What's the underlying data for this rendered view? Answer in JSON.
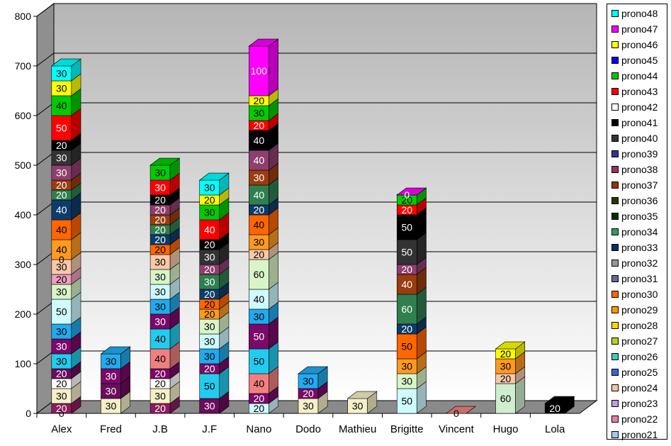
{
  "chart_data": {
    "type": "bar",
    "stacked": true,
    "three_d": true,
    "title": "",
    "xlabel": "",
    "ylabel": "",
    "ylim": [
      0,
      800
    ],
    "yticks": [
      0,
      100,
      200,
      300,
      400,
      500,
      600,
      700,
      800
    ],
    "grid": true,
    "legend_position": "right",
    "categories": [
      "Alex",
      "Fred",
      "J.B",
      "J.F",
      "Nano",
      "Dodo",
      "Mathieu",
      "Brigitte",
      "Vincent",
      "Hugo",
      "Lola"
    ],
    "series": [
      {
        "name": "prono21",
        "color": "#9ecaf0",
        "values": [
          0,
          0,
          0,
          0,
          20,
          0,
          0,
          50,
          0,
          0,
          0
        ]
      },
      {
        "name": "prono22",
        "color": "#e67fa0",
        "values": [
          20,
          0,
          20,
          0,
          0,
          0,
          0,
          0,
          0,
          0,
          0
        ]
      },
      {
        "name": "prono23",
        "color": "#b6a0e6",
        "values": [
          0,
          0,
          0,
          0,
          0,
          0,
          0,
          0,
          0,
          0,
          0
        ]
      },
      {
        "name": "prono24",
        "color": "#f5c6a5",
        "values": [
          0,
          0,
          0,
          0,
          0,
          0,
          0,
          0,
          0,
          20,
          0
        ]
      },
      {
        "name": "prono25",
        "color": "#3a67d6",
        "values": [
          0,
          0,
          0,
          0,
          0,
          0,
          0,
          0,
          0,
          0,
          0
        ]
      },
      {
        "name": "prono26",
        "color": "#3fc7c0",
        "values": [
          0,
          0,
          0,
          0,
          0,
          0,
          0,
          0,
          0,
          0,
          0
        ]
      },
      {
        "name": "prono27",
        "color": "#b5d327",
        "values": [
          0,
          0,
          0,
          0,
          0,
          0,
          0,
          0,
          0,
          0,
          0
        ]
      },
      {
        "name": "prono28",
        "color": "#ffd700",
        "values": [
          0,
          0,
          0,
          0,
          0,
          0,
          0,
          0,
          0,
          0,
          0
        ]
      },
      {
        "name": "prono29",
        "color": "#ff9900",
        "values": [
          0,
          0,
          0,
          0,
          0,
          0,
          0,
          0,
          0,
          0,
          0
        ]
      },
      {
        "name": "prono30",
        "color": "#ff6600",
        "values": [
          0,
          0,
          0,
          0,
          0,
          0,
          0,
          0,
          0,
          0,
          0
        ]
      },
      {
        "name": "prono31",
        "color": "#666699",
        "values": [
          0,
          0,
          0,
          0,
          0,
          0,
          0,
          0,
          0,
          0,
          0
        ]
      },
      {
        "name": "prono32",
        "color": "#969696",
        "values": [
          0,
          0,
          0,
          0,
          0,
          0,
          0,
          0,
          0,
          0,
          0
        ]
      },
      {
        "name": "prono33",
        "color": "#003366",
        "values": [
          0,
          0,
          0,
          0,
          0,
          0,
          0,
          0,
          0,
          0,
          0
        ]
      },
      {
        "name": "prono34",
        "color": "#339966",
        "values": [
          0,
          0,
          0,
          0,
          0,
          0,
          0,
          0,
          0,
          0,
          0
        ]
      },
      {
        "name": "prono35",
        "color": "#003300",
        "values": [
          0,
          0,
          0,
          0,
          0,
          0,
          0,
          0,
          0,
          0,
          0
        ]
      },
      {
        "name": "prono36",
        "color": "#333300",
        "values": [
          0,
          0,
          0,
          0,
          0,
          0,
          0,
          0,
          0,
          0,
          0
        ]
      },
      {
        "name": "prono37",
        "color": "#993300",
        "values": [
          0,
          0,
          0,
          0,
          0,
          0,
          0,
          0,
          0,
          0,
          0
        ]
      },
      {
        "name": "prono38",
        "color": "#993366",
        "values": [
          0,
          0,
          0,
          0,
          0,
          0,
          0,
          0,
          0,
          0,
          0
        ]
      },
      {
        "name": "prono39",
        "color": "#333399",
        "values": [
          0,
          0,
          0,
          0,
          0,
          0,
          0,
          0,
          0,
          0,
          0
        ]
      },
      {
        "name": "prono40",
        "color": "#333333",
        "values": [
          0,
          0,
          0,
          0,
          0,
          0,
          0,
          0,
          0,
          0,
          0
        ]
      },
      {
        "name": "prono41",
        "color": "#000000",
        "values": [
          0,
          0,
          0,
          0,
          0,
          0,
          0,
          0,
          0,
          0,
          20
        ]
      },
      {
        "name": "prono42",
        "color": "#ffffff",
        "values": [
          0,
          0,
          0,
          0,
          0,
          0,
          0,
          0,
          0,
          0,
          0
        ]
      },
      {
        "name": "prono43",
        "color": "#ff0000",
        "values": [
          0,
          0,
          0,
          0,
          0,
          0,
          0,
          0,
          0,
          0,
          0
        ]
      },
      {
        "name": "prono44",
        "color": "#00cc00",
        "values": [
          0,
          0,
          0,
          0,
          0,
          0,
          0,
          0,
          0,
          0,
          0
        ]
      },
      {
        "name": "prono45",
        "color": "#0000ff",
        "values": [
          0,
          0,
          0,
          0,
          0,
          0,
          0,
          0,
          0,
          0,
          0
        ]
      },
      {
        "name": "prono46",
        "color": "#ffff00",
        "values": [
          0,
          0,
          0,
          0,
          0,
          0,
          0,
          0,
          0,
          0,
          0
        ]
      },
      {
        "name": "prono47",
        "color": "#ff00ff",
        "values": [
          0,
          0,
          0,
          0,
          0,
          0,
          0,
          0,
          0,
          0,
          0
        ]
      },
      {
        "name": "prono48",
        "color": "#00ffff",
        "values": [
          0,
          0,
          0,
          0,
          0,
          0,
          0,
          0,
          0,
          0,
          0
        ]
      }
    ],
    "stacks": [
      [
        [
          "#bc8fa8",
          0
        ],
        [
          "#8b1d5e",
          20
        ],
        [
          "#f5f0c8",
          30
        ],
        [
          "#ffffff",
          20
        ],
        [
          "#6a0d5c",
          20
        ],
        [
          "#22ccee",
          30
        ],
        [
          "#7a0a6a",
          30
        ],
        [
          "#22aaee",
          30
        ],
        [
          "#cffaff",
          50
        ],
        [
          "#d9f5c8",
          30
        ],
        [
          "#ef9fc0",
          20
        ],
        [
          "#f7c8a8",
          30
        ],
        [
          "#33cccc",
          0
        ],
        [
          "#ff9922",
          40
        ],
        [
          "#ff6600",
          40
        ],
        [
          "#0e3c6a",
          40
        ],
        [
          "#2f7f4f",
          20
        ],
        [
          "#9a3d10",
          20
        ],
        [
          "#8e3f6e",
          30
        ],
        [
          "#333333",
          30
        ],
        [
          "#000000",
          20
        ],
        [
          "#ff0000",
          50
        ],
        [
          "#00cc00",
          40
        ],
        [
          "#ffff00",
          30
        ],
        [
          "#00ffff",
          30
        ]
      ],
      [
        [
          "#f5f0c8",
          30
        ],
        [
          "#6a0d5c",
          30
        ],
        [
          "#7a0a6a",
          30
        ],
        [
          "#22aaee",
          30
        ]
      ],
      [
        [
          "#8b1d5e",
          20
        ],
        [
          "#f5f0c8",
          30
        ],
        [
          "#ffffff",
          20
        ],
        [
          "#7a0a6a",
          20
        ],
        [
          "#f08080",
          40
        ],
        [
          "#22ccee",
          40
        ],
        [
          "#7a0a6a",
          30
        ],
        [
          "#22aaee",
          30
        ],
        [
          "#cffaff",
          30
        ],
        [
          "#d9f5c8",
          30
        ],
        [
          "#f7c8a8",
          30
        ],
        [
          "#ff6600",
          20
        ],
        [
          "#0e3c6a",
          20
        ],
        [
          "#2f7f4f",
          20
        ],
        [
          "#9a3d10",
          20
        ],
        [
          "#8e3f6e",
          20
        ],
        [
          "#000000",
          20
        ],
        [
          "#ff0000",
          30
        ],
        [
          "#00cc00",
          30
        ]
      ],
      [
        [
          "#6a0d5c",
          30
        ],
        [
          "#22ccee",
          50
        ],
        [
          "#7a0a6a",
          20
        ],
        [
          "#22aaee",
          30
        ],
        [
          "#cffaff",
          30
        ],
        [
          "#d9f5c8",
          30
        ],
        [
          "#ff9922",
          20
        ],
        [
          "#ff6600",
          20
        ],
        [
          "#0e3c6a",
          20
        ],
        [
          "#2f7f4f",
          30
        ],
        [
          "#8e3f6e",
          20
        ],
        [
          "#333333",
          30
        ],
        [
          "#000000",
          20
        ],
        [
          "#ff0000",
          40
        ],
        [
          "#00cc00",
          30
        ],
        [
          "#ffff00",
          20
        ],
        [
          "#00ffff",
          30
        ]
      ],
      [
        [
          "#cffaff",
          20
        ],
        [
          "#7a0a6a",
          20
        ],
        [
          "#f08080",
          40
        ],
        [
          "#22ccee",
          50
        ],
        [
          "#7a0a6a",
          50
        ],
        [
          "#22aaee",
          30
        ],
        [
          "#cffaff",
          40
        ],
        [
          "#d9f5c8",
          60
        ],
        [
          "#f7c8a8",
          20
        ],
        [
          "#ff9922",
          30
        ],
        [
          "#ff6600",
          40
        ],
        [
          "#0e3c6a",
          20
        ],
        [
          "#2f7f4f",
          40
        ],
        [
          "#9a3d10",
          30
        ],
        [
          "#8e3f6e",
          40
        ],
        [
          "#000000",
          40
        ],
        [
          "#ff0000",
          20
        ],
        [
          "#00cc00",
          30
        ],
        [
          "#ffff00",
          20
        ],
        [
          "#ff00ff",
          100
        ]
      ],
      [
        [
          "#f5f0c8",
          30
        ],
        [
          "#7a0a6a",
          20
        ],
        [
          "#22aaee",
          30
        ]
      ],
      [
        [
          "#f5f0c8",
          30
        ]
      ],
      [
        [
          "#cffaff",
          50
        ],
        [
          "#d9f5c8",
          30
        ],
        [
          "#ff9922",
          30
        ],
        [
          "#ff6600",
          50
        ],
        [
          "#0e3c6a",
          20
        ],
        [
          "#2f7f4f",
          60
        ],
        [
          "#9a3d10",
          40
        ],
        [
          "#8e3f6e",
          20
        ],
        [
          "#333333",
          50
        ],
        [
          "#000000",
          50
        ],
        [
          "#ff0000",
          20
        ],
        [
          "#00cc00",
          20
        ],
        [
          "#ff00ff",
          0
        ]
      ],
      [
        [
          "#f08080",
          0
        ]
      ],
      [
        [
          "#cfeecf",
          60
        ],
        [
          "#f7c8a8",
          20
        ],
        [
          "#ff9922",
          30
        ],
        [
          "#ffff00",
          20
        ]
      ],
      [
        [
          "#000000",
          20
        ]
      ]
    ]
  }
}
